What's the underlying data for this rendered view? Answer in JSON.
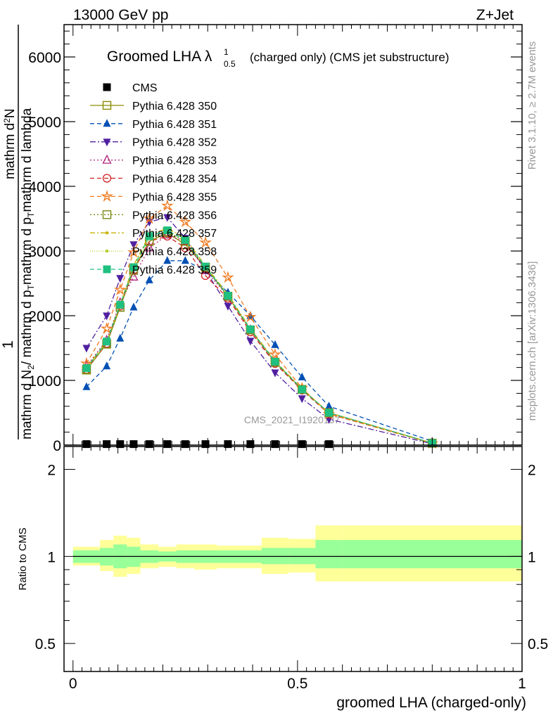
{
  "header": {
    "left": "13000 GeV pp",
    "right": "Z+Jet"
  },
  "side_labels": {
    "rivet": "Rivet 3.1.10, ≥ 2.7M events",
    "mcplots": "mcplots.cern.ch [arXiv:1306.3436]"
  },
  "watermark": "CMS_2021_I1920187",
  "chart_data": [
    {
      "panel": "main",
      "type": "line",
      "title_main": "Groomed LHA λ",
      "title_sup": "1",
      "title_sub": "0.5",
      "title_rest": "(charged only) (CMS jet substructure)",
      "ylabel_line1": "1",
      "ylabel_line2_part1": "mathrm d N",
      "ylabel_line2_sub": "2",
      "ylabel_line2_part2": "/ mathrm d p",
      "ylabel_line2_sub2": "T",
      "ylabel_line2_part3": "mathrm d p",
      "ylabel_line2_sub3": "T",
      "ylabel_line2_part4": "mathrm d lambda",
      "ylabel_num": "mathrm d",
      "ylabel_num_sup": "2",
      "ylabel_num_N": "N",
      "ylim": [
        0,
        6500
      ],
      "yticks": [
        0,
        1000,
        2000,
        3000,
        4000,
        5000,
        6000
      ],
      "ytick_labels": [
        "0",
        "1000",
        "2000",
        "3000",
        "4000",
        "5000",
        "6000"
      ],
      "x": [
        0.03,
        0.075,
        0.105,
        0.135,
        0.17,
        0.21,
        0.25,
        0.295,
        0.345,
        0.395,
        0.45,
        0.51,
        0.57,
        0.8
      ],
      "series": [
        {
          "name": "CMS",
          "color": "#000000",
          "marker": "square-filled",
          "dash": "none",
          "values": [
            15,
            15,
            15,
            15,
            15,
            15,
            15,
            15,
            15,
            15,
            15,
            15,
            15,
            null
          ]
        },
        {
          "name": "Pythia 6.428 350",
          "color": "#8b8b00",
          "marker": "square-open",
          "dash": "solid",
          "values": [
            1160,
            1570,
            2130,
            2720,
            3150,
            3280,
            3100,
            2750,
            2300,
            1780,
            1280,
            860,
            500,
            30
          ]
        },
        {
          "name": "Pythia 6.428 351",
          "color": "#0050b4",
          "marker": "triangle-up-filled",
          "dash": "6,4",
          "values": [
            900,
            1220,
            1650,
            2130,
            2550,
            2850,
            2850,
            2700,
            2360,
            2000,
            1550,
            1050,
            600,
            60
          ]
        },
        {
          "name": "Pythia 6.428 352",
          "color": "#5020a0",
          "marker": "triangle-down-filled",
          "dash": "8,3,2,3",
          "values": [
            1500,
            2000,
            2580,
            3100,
            3450,
            3520,
            3200,
            2700,
            2150,
            1610,
            1120,
            720,
            400,
            20
          ]
        },
        {
          "name": "Pythia 6.428 353",
          "color": "#b0207a",
          "marker": "triangle-up-open",
          "dash": "2,3",
          "values": [
            1220,
            1620,
            2200,
            2600,
            3050,
            3250,
            3150,
            2700,
            2300,
            1780,
            1280,
            860,
            500,
            30
          ]
        },
        {
          "name": "Pythia 6.428 354",
          "color": "#d02020",
          "marker": "circle-open",
          "dash": "6,4",
          "values": [
            1170,
            1570,
            2150,
            2700,
            3150,
            3230,
            3050,
            2620,
            2270,
            1750,
            1260,
            850,
            480,
            30
          ]
        },
        {
          "name": "Pythia 6.428 355",
          "color": "#f07a20",
          "marker": "star-open",
          "dash": "6,4",
          "values": [
            1260,
            1800,
            2400,
            2980,
            3500,
            3700,
            3450,
            3130,
            2590,
            1980,
            1400,
            880,
            480,
            25
          ]
        },
        {
          "name": "Pythia 6.428 356",
          "color": "#7a8a10",
          "marker": "square-open",
          "dash": "2,3",
          "values": [
            1170,
            1560,
            2130,
            2700,
            3150,
            3300,
            3150,
            2750,
            2300,
            1780,
            1280,
            860,
            500,
            30
          ]
        },
        {
          "name": "Pythia 6.428 357",
          "color": "#c8b400",
          "marker": "dot",
          "dash": "7,3,2,3",
          "values": [
            1200,
            1600,
            2180,
            2780,
            3250,
            3350,
            3200,
            2770,
            2330,
            1800,
            1300,
            870,
            500,
            30
          ]
        },
        {
          "name": "Pythia 6.428 358",
          "color": "#b0d020",
          "marker": "dot",
          "dash": "1,2",
          "values": [
            1180,
            1580,
            2150,
            2740,
            3200,
            3300,
            3150,
            2750,
            2300,
            1780,
            1280,
            860,
            500,
            30
          ]
        },
        {
          "name": "Pythia 6.428 359",
          "color": "#20c080",
          "marker": "square-filled",
          "dash": "6,4",
          "values": [
            1190,
            1600,
            2170,
            2750,
            3230,
            3320,
            3170,
            2760,
            2310,
            1790,
            1290,
            860,
            500,
            30
          ]
        }
      ]
    },
    {
      "panel": "ratio",
      "type": "area",
      "ylabel": "Ratio to CMS",
      "xlabel": "groomed LHA (charged-only)",
      "xlim": [
        -0.02,
        1.0
      ],
      "xticks": [
        0,
        0.5,
        1
      ],
      "xtick_labels": [
        "0",
        "0.5",
        "1"
      ],
      "yticks": [
        0.5,
        1,
        2
      ],
      "ytick_labels": [
        "0.5",
        "1",
        "2"
      ],
      "ylim": [
        0.4,
        2.4
      ],
      "scale": "log",
      "bin_edges": [
        0.0,
        0.06,
        0.09,
        0.12,
        0.15,
        0.19,
        0.23,
        0.27,
        0.32,
        0.37,
        0.42,
        0.48,
        0.54,
        0.6,
        1.0
      ],
      "green_low": [
        0.95,
        0.93,
        0.91,
        0.92,
        0.95,
        0.96,
        0.95,
        0.95,
        0.95,
        0.95,
        0.94,
        0.94,
        0.91,
        0.91
      ],
      "green_high": [
        1.05,
        1.07,
        1.1,
        1.08,
        1.05,
        1.04,
        1.05,
        1.05,
        1.05,
        1.05,
        1.07,
        1.07,
        1.14,
        1.14
      ],
      "yellow_low": [
        0.93,
        0.89,
        0.85,
        0.87,
        0.91,
        0.92,
        0.91,
        0.9,
        0.91,
        0.91,
        0.87,
        0.88,
        0.82,
        0.82
      ],
      "yellow_high": [
        1.08,
        1.14,
        1.18,
        1.16,
        1.1,
        1.08,
        1.1,
        1.1,
        1.09,
        1.09,
        1.16,
        1.15,
        1.28,
        1.28
      ],
      "yellow_color": "#ffff99",
      "green_color": "#99ff99"
    }
  ]
}
